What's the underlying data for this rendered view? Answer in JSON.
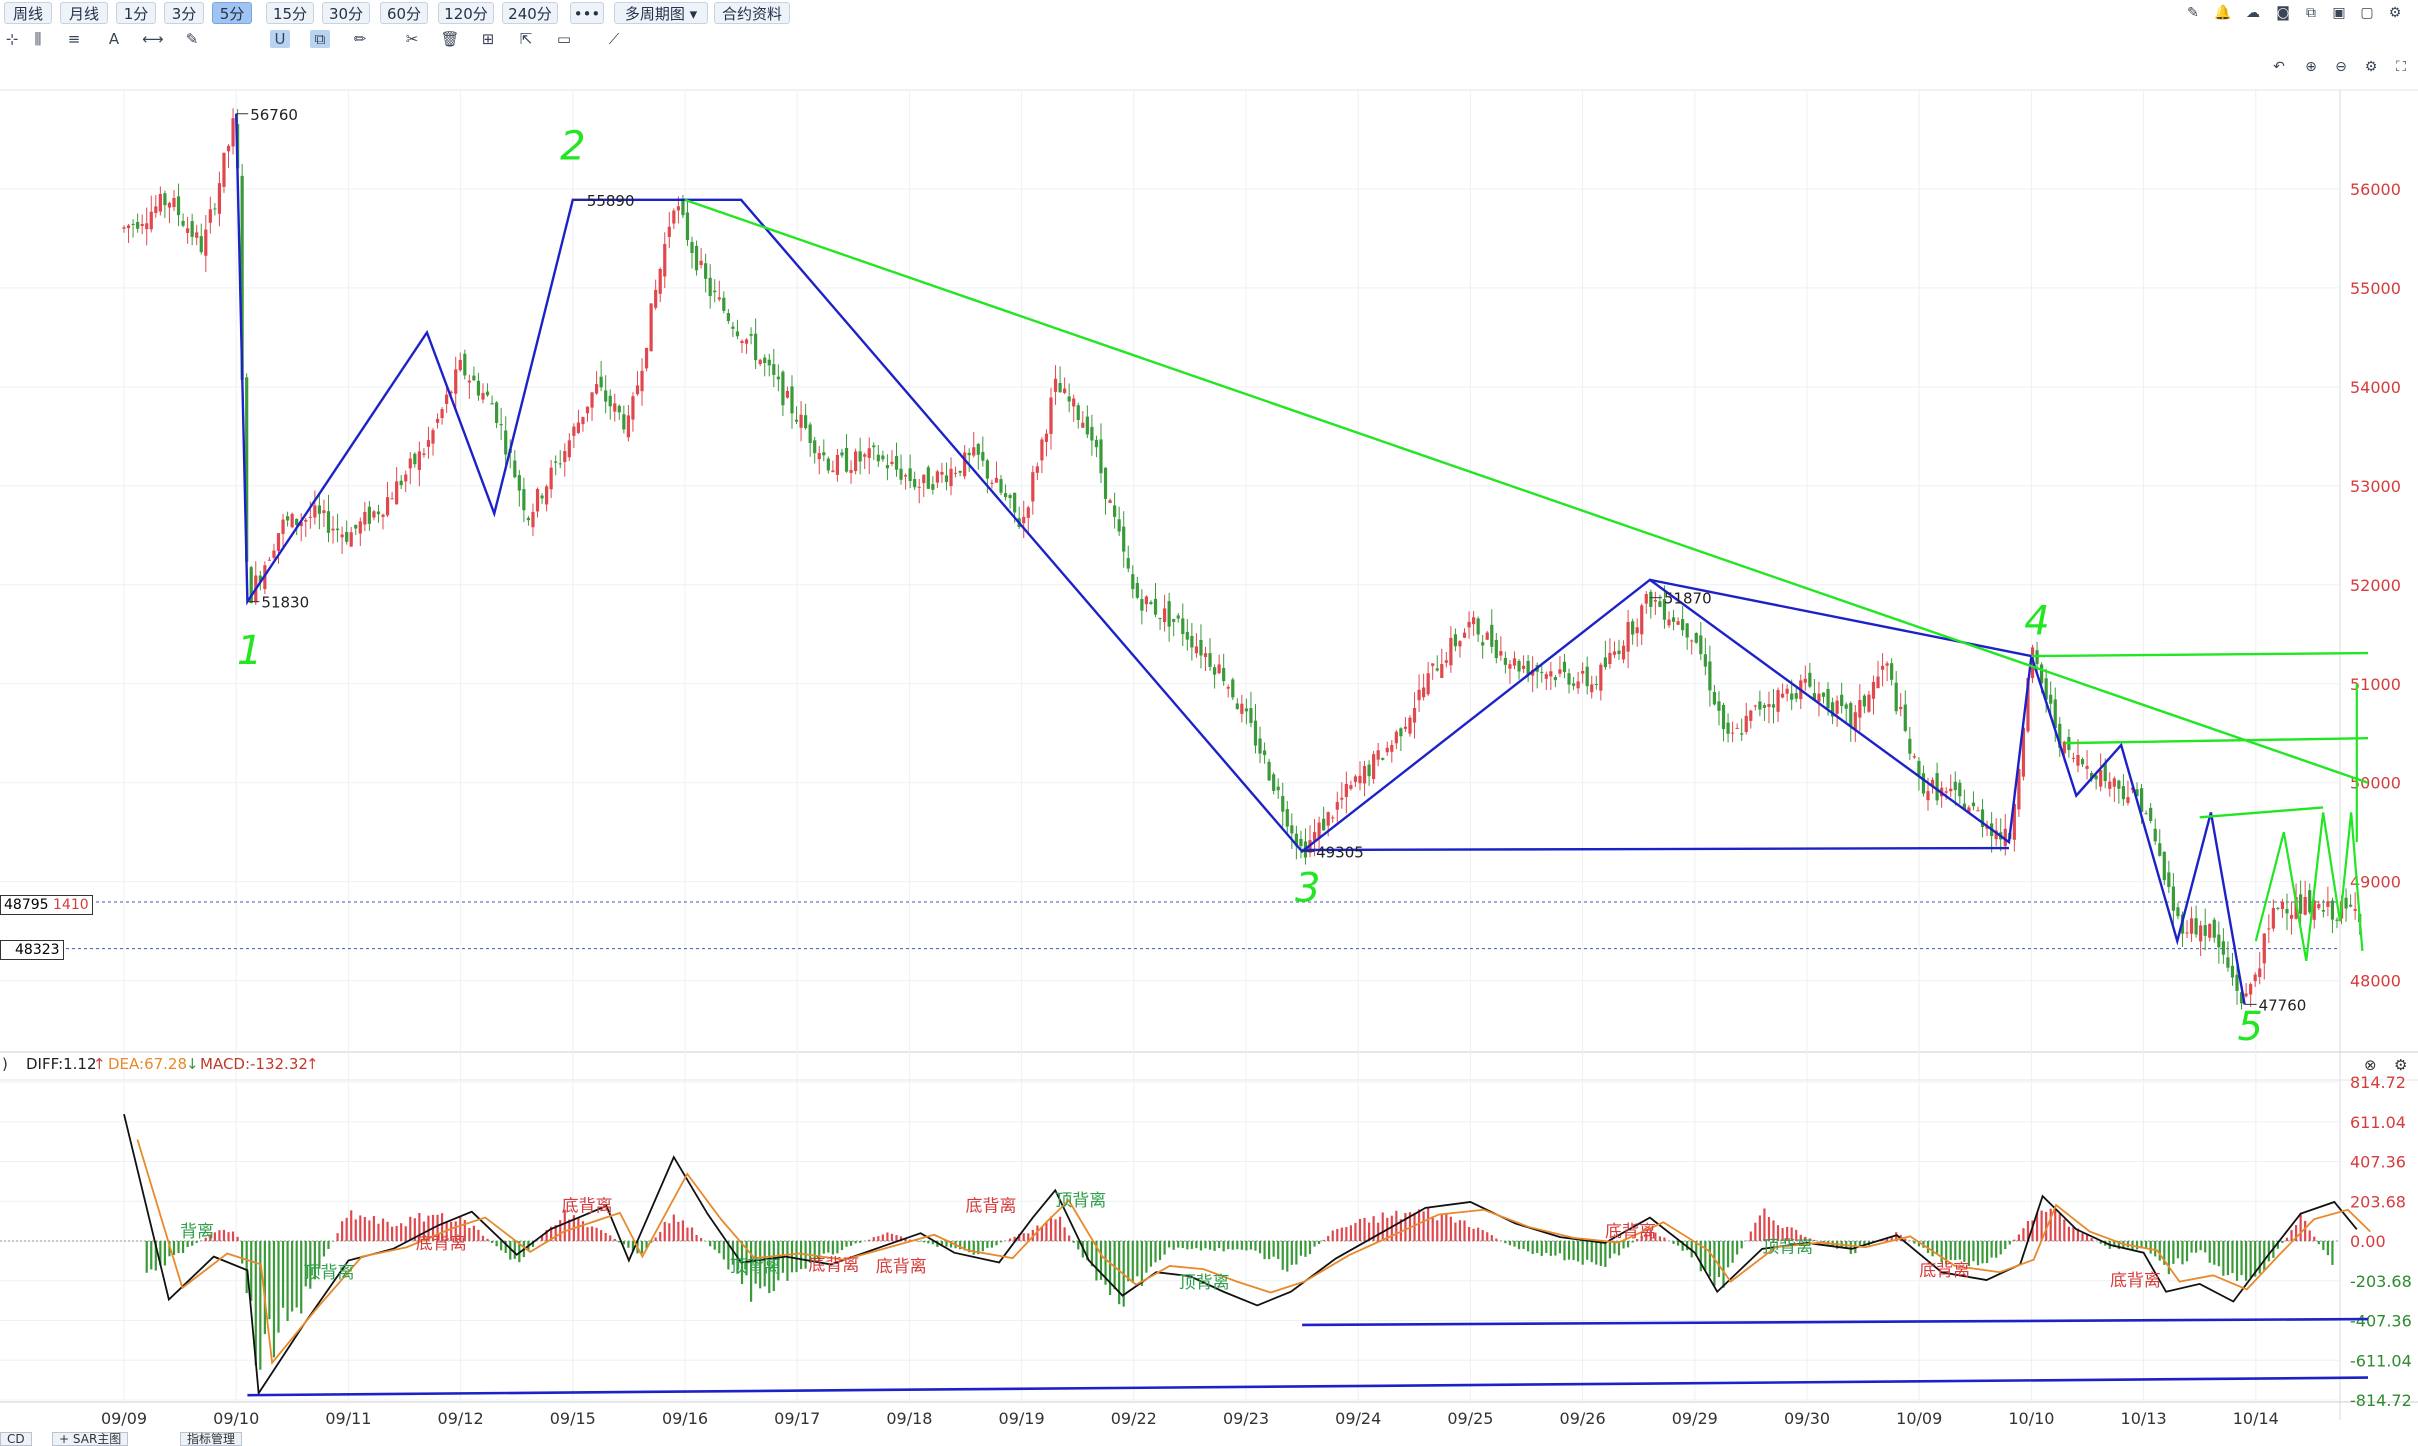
{
  "toolbar": {
    "periods": [
      "周线",
      "月线",
      "1分",
      "3分",
      "5分",
      "15分",
      "30分",
      "60分",
      "120分",
      "240分"
    ],
    "active_period": "5分",
    "more_label": "•••",
    "multi_period_label": "多周期图",
    "contract_info_label": "合约资料"
  },
  "price_axis": {
    "ticks": [
      "56000",
      "55000",
      "54000",
      "53000",
      "52000",
      "51000",
      "50000",
      "49000",
      "48000"
    ],
    "tick_values": [
      56000,
      55000,
      54000,
      53000,
      52000,
      51000,
      50000,
      49000,
      48000
    ]
  },
  "price_tags": {
    "current_price": "48795",
    "current_change": "1410",
    "ref_price": "48323"
  },
  "date_axis": [
    "09/09",
    "09/10",
    "09/11",
    "09/12",
    "09/15",
    "09/16",
    "09/17",
    "09/18",
    "09/19",
    "09/22",
    "09/23",
    "09/24",
    "09/25",
    "09/26",
    "09/29",
    "09/30",
    "10/09",
    "10/10",
    "10/13",
    "10/14"
  ],
  "price_annotations": [
    {
      "label": "56760",
      "value": 56760
    },
    {
      "label": "51830",
      "value": 51830
    },
    {
      "label": "55890",
      "value": 55890
    },
    {
      "label": "49305",
      "value": 49305
    },
    {
      "label": "51870",
      "value": 51870
    },
    {
      "label": "47760",
      "value": 47760
    }
  ],
  "wave_labels": [
    "1",
    "2",
    "3",
    "4",
    "5"
  ],
  "macd": {
    "prefix": ")",
    "diff_label": "DIFF:1.12",
    "dea_label": "DEA:67.28",
    "macd_label": "MACD:-132.32",
    "axis_ticks": [
      "814.72",
      "611.04",
      "407.36",
      "203.68",
      "0.00",
      "-203.68",
      "-407.36",
      "-611.04",
      "-814.72"
    ],
    "axis_values": [
      814.72,
      611.04,
      407.36,
      203.68,
      0,
      -203.68,
      -407.36,
      -611.04,
      -814.72
    ],
    "divergence_labels": [
      {
        "text": "背离",
        "type": "top"
      },
      {
        "text": "顶背离",
        "type": "top"
      },
      {
        "text": "底背离",
        "type": "bottom"
      },
      {
        "text": "底背离",
        "type": "bottom"
      },
      {
        "text": "顶背离",
        "type": "top"
      },
      {
        "text": "底背离",
        "type": "bottom"
      },
      {
        "text": "底背离",
        "type": "bottom"
      },
      {
        "text": "底背离",
        "type": "bottom"
      },
      {
        "text": "顶背离",
        "type": "top"
      },
      {
        "text": "顶背离",
        "type": "top"
      },
      {
        "text": "底背离",
        "type": "bottom"
      },
      {
        "text": "顶背离",
        "type": "top"
      },
      {
        "text": "底背离",
        "type": "bottom"
      },
      {
        "text": "底背离",
        "type": "bottom"
      }
    ]
  },
  "bottom_tabs": [
    "CD",
    "SAR主图",
    "指标管理"
  ],
  "colors": {
    "up": "#e0484e",
    "down": "#3a9a3a",
    "wave_line": "#1c22c8",
    "trend_line": "#22e622",
    "diff": "#111111",
    "dea": "#e8892a"
  },
  "chart_data": {
    "type": "candlestick",
    "interval": "5分",
    "title": "",
    "x_categories": [
      "09/09",
      "09/10",
      "09/11",
      "09/12",
      "09/15",
      "09/16",
      "09/17",
      "09/18",
      "09/19",
      "09/22",
      "09/23",
      "09/24",
      "09/25",
      "09/26",
      "09/29",
      "09/30",
      "10/09",
      "10/10",
      "10/13",
      "10/14"
    ],
    "ylim": [
      47400,
      57000
    ],
    "close_path": [
      [
        0.0,
        55600
      ],
      [
        0.4,
        55900
      ],
      [
        0.7,
        55400
      ],
      [
        1.0,
        56760
      ],
      [
        1.1,
        51830
      ],
      [
        1.4,
        52600
      ],
      [
        1.7,
        52700
      ],
      [
        2.0,
        52500
      ],
      [
        2.3,
        52800
      ],
      [
        2.7,
        53400
      ],
      [
        3.0,
        54200
      ],
      [
        3.3,
        53800
      ],
      [
        3.6,
        52700
      ],
      [
        3.9,
        53300
      ],
      [
        4.2,
        54000
      ],
      [
        4.5,
        53600
      ],
      [
        4.9,
        55890
      ],
      [
        5.2,
        55000
      ],
      [
        5.6,
        54400
      ],
      [
        6.0,
        53700
      ],
      [
        6.3,
        53200
      ],
      [
        6.7,
        53300
      ],
      [
        7.1,
        53000
      ],
      [
        7.6,
        53300
      ],
      [
        8.0,
        52600
      ],
      [
        8.3,
        54000
      ],
      [
        8.6,
        53600
      ],
      [
        9.0,
        51900
      ],
      [
        9.4,
        51600
      ],
      [
        9.8,
        51100
      ],
      [
        10.1,
        50400
      ],
      [
        10.5,
        49305
      ],
      [
        10.9,
        49900
      ],
      [
        11.3,
        50400
      ],
      [
        11.7,
        51200
      ],
      [
        12.0,
        51600
      ],
      [
        12.4,
        51200
      ],
      [
        12.8,
        51100
      ],
      [
        13.1,
        51000
      ],
      [
        13.6,
        51870
      ],
      [
        14.0,
        51500
      ],
      [
        14.3,
        50400
      ],
      [
        14.6,
        50800
      ],
      [
        15.0,
        51000
      ],
      [
        15.4,
        50600
      ],
      [
        15.7,
        51200
      ],
      [
        16.0,
        50000
      ],
      [
        16.4,
        49800
      ],
      [
        16.8,
        49400
      ],
      [
        17.0,
        51300
      ],
      [
        17.3,
        50300
      ],
      [
        17.6,
        50100
      ],
      [
        18.0,
        49800
      ],
      [
        18.3,
        48600
      ],
      [
        18.6,
        48500
      ],
      [
        18.9,
        47760
      ],
      [
        19.2,
        48800
      ],
      [
        19.6,
        48700
      ],
      [
        19.9,
        48700
      ]
    ],
    "wave_polyline": [
      [
        1.0,
        56760
      ],
      [
        1.1,
        51830
      ],
      [
        2.7,
        54550
      ],
      [
        3.3,
        52720
      ],
      [
        4.0,
        55890
      ],
      [
        5.0,
        55890
      ],
      [
        5.5,
        55890
      ],
      [
        10.5,
        49305
      ],
      [
        13.6,
        52050
      ],
      [
        16.8,
        49400
      ],
      [
        17.0,
        51280
      ],
      [
        17.4,
        49870
      ],
      [
        17.8,
        50380
      ],
      [
        18.3,
        48400
      ],
      [
        18.6,
        49700
      ],
      [
        18.9,
        47760
      ]
    ],
    "trendlines": [
      {
        "from": [
          5.0,
          55890
        ],
        "to": [
          20.0,
          50000
        ]
      },
      {
        "from": [
          17.0,
          51280
        ],
        "to": [
          20.0,
          51310
        ]
      },
      {
        "from": [
          17.3,
          50400
        ],
        "to": [
          20.0,
          50450
        ]
      },
      {
        "from": [
          18.5,
          49650
        ],
        "to": [
          19.6,
          49750
        ]
      }
    ],
    "horizontal_support": [
      [
        10.5,
        49320
      ],
      [
        16.8,
        49340
      ]
    ],
    "macd_series": {
      "diff": [
        [
          0.0,
          650
        ],
        [
          0.4,
          -300
        ],
        [
          0.8,
          -80
        ],
        [
          1.1,
          -150
        ],
        [
          1.2,
          -780
        ],
        [
          1.6,
          -430
        ],
        [
          2.0,
          -100
        ],
        [
          2.4,
          -40
        ],
        [
          2.8,
          80
        ],
        [
          3.1,
          150
        ],
        [
          3.5,
          -70
        ],
        [
          3.8,
          60
        ],
        [
          4.3,
          180
        ],
        [
          4.5,
          -100
        ],
        [
          4.9,
          430
        ],
        [
          5.2,
          140
        ],
        [
          5.5,
          -110
        ],
        [
          5.9,
          -80
        ],
        [
          6.3,
          -120
        ],
        [
          6.7,
          -40
        ],
        [
          7.1,
          40
        ],
        [
          7.4,
          -60
        ],
        [
          7.8,
          -110
        ],
        [
          8.1,
          120
        ],
        [
          8.3,
          260
        ],
        [
          8.6,
          -100
        ],
        [
          8.9,
          -280
        ],
        [
          9.2,
          -160
        ],
        [
          9.5,
          -180
        ],
        [
          9.8,
          -260
        ],
        [
          10.1,
          -330
        ],
        [
          10.4,
          -260
        ],
        [
          10.8,
          -90
        ],
        [
          11.2,
          40
        ],
        [
          11.6,
          170
        ],
        [
          12.0,
          200
        ],
        [
          12.4,
          90
        ],
        [
          12.8,
          20
        ],
        [
          13.2,
          -10
        ],
        [
          13.6,
          120
        ],
        [
          14.0,
          -60
        ],
        [
          14.2,
          -260
        ],
        [
          14.6,
          -40
        ],
        [
          15.0,
          -10
        ],
        [
          15.4,
          -40
        ],
        [
          15.8,
          30
        ],
        [
          16.2,
          -160
        ],
        [
          16.6,
          -200
        ],
        [
          16.9,
          -120
        ],
        [
          17.1,
          230
        ],
        [
          17.4,
          60
        ],
        [
          17.7,
          -20
        ],
        [
          18.0,
          -60
        ],
        [
          18.2,
          -260
        ],
        [
          18.5,
          -220
        ],
        [
          18.8,
          -310
        ],
        [
          19.1,
          -80
        ],
        [
          19.4,
          140
        ],
        [
          19.7,
          200
        ],
        [
          19.9,
          60
        ]
      ],
      "histogram": [
        [
          0.2,
          -160
        ],
        [
          0.8,
          40
        ],
        [
          1.0,
          60
        ],
        [
          1.2,
          -600
        ],
        [
          1.5,
          -380
        ],
        [
          2.0,
          140
        ],
        [
          2.4,
          80
        ],
        [
          2.8,
          140
        ],
        [
          3.1,
          80
        ],
        [
          3.5,
          -120
        ],
        [
          3.9,
          140
        ],
        [
          4.3,
          40
        ],
        [
          4.6,
          -80
        ],
        [
          4.9,
          140
        ],
        [
          5.3,
          -60
        ],
        [
          5.6,
          -260
        ],
        [
          6.0,
          -150
        ],
        [
          6.4,
          -40
        ],
        [
          6.8,
          40
        ],
        [
          7.2,
          -20
        ],
        [
          7.6,
          -60
        ],
        [
          8.1,
          60
        ],
        [
          8.3,
          140
        ],
        [
          8.6,
          -130
        ],
        [
          8.9,
          -300
        ],
        [
          9.3,
          -40
        ],
        [
          9.7,
          -40
        ],
        [
          10.1,
          -60
        ],
        [
          10.4,
          -140
        ],
        [
          10.8,
          60
        ],
        [
          11.2,
          120
        ],
        [
          11.6,
          150
        ],
        [
          12.0,
          90
        ],
        [
          12.4,
          -40
        ],
        [
          12.8,
          -80
        ],
        [
          13.2,
          -120
        ],
        [
          13.6,
          60
        ],
        [
          14.0,
          -80
        ],
        [
          14.2,
          -250
        ],
        [
          14.6,
          140
        ],
        [
          15.0,
          20
        ],
        [
          15.4,
          -60
        ],
        [
          15.8,
          40
        ],
        [
          16.2,
          -90
        ],
        [
          16.6,
          -140
        ],
        [
          16.9,
          40
        ],
        [
          17.1,
          180
        ],
        [
          17.4,
          60
        ],
        [
          17.7,
          -40
        ],
        [
          18.0,
          -40
        ],
        [
          18.2,
          -160
        ],
        [
          18.5,
          -40
        ],
        [
          18.8,
          -220
        ],
        [
          19.1,
          -120
        ],
        [
          19.4,
          120
        ],
        [
          19.7,
          -130
        ]
      ]
    },
    "macd_ylim": [
      -814.72,
      814.72
    ],
    "macd_support_lines": [
      [
        [
          1.1,
          -790
        ],
        [
          20.0,
          -700
        ]
      ],
      [
        [
          10.5,
          -430
        ],
        [
          20.0,
          -400
        ]
      ]
    ]
  }
}
